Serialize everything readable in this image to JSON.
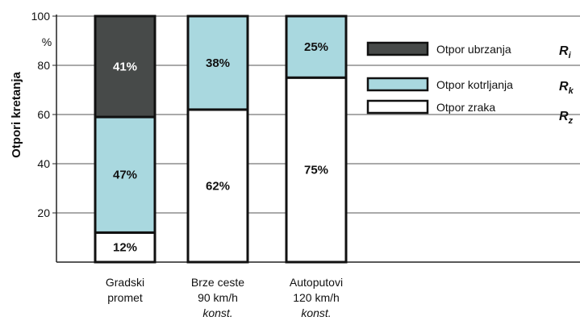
{
  "chart_data": {
    "type": "bar",
    "stacked": true,
    "ylabel": "Otpori kretanja",
    "yunit": "%",
    "ylim": [
      0,
      100
    ],
    "yticks": [
      "20",
      "40",
      "60",
      "80",
      "100"
    ],
    "grid": true,
    "legend_position": "right",
    "categories": [
      [
        "Gradski",
        "promet"
      ],
      [
        "Brze ceste",
        "90 km/h",
        "konst."
      ],
      [
        "Autoputovi",
        "120 km/h",
        "konst."
      ]
    ],
    "series": [
      {
        "name": "Otpor zraka",
        "symbol": "R",
        "subscript": "z",
        "color": "#ffffff",
        "label_color": "#111111",
        "values": [
          12,
          62,
          75
        ],
        "labels": [
          "12%",
          "62%",
          "75%"
        ]
      },
      {
        "name": "Otpor kotrljanja",
        "symbol": "R",
        "subscript": "k",
        "color": "#a9d8df",
        "label_color": "#111111",
        "values": [
          47,
          38,
          25
        ],
        "labels": [
          "47%",
          "38%",
          "25%"
        ]
      },
      {
        "name": "Otpor ubrzanja",
        "symbol": "R",
        "subscript": "i",
        "color": "#474a49",
        "label_color": "#ffffff",
        "values": [
          41,
          0,
          0
        ],
        "labels": [
          "41%",
          "",
          ""
        ]
      }
    ]
  }
}
